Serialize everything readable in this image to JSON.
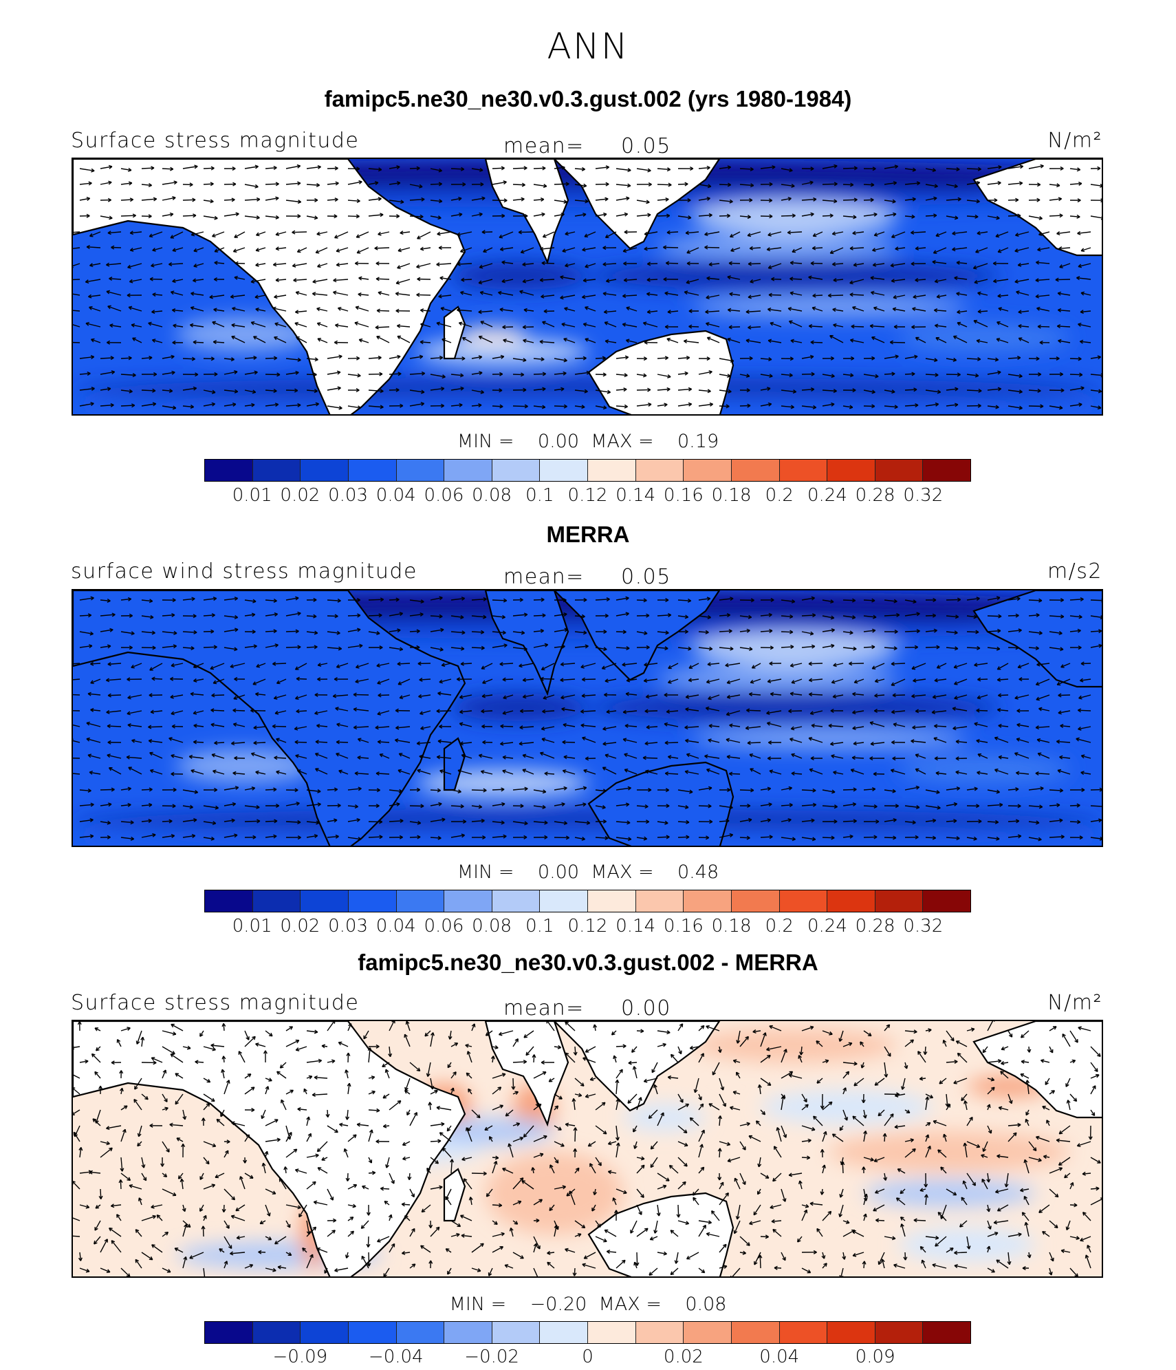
{
  "figure": {
    "season": "ANN",
    "colors": [
      "#08088c",
      "#0c2db0",
      "#0d44d6",
      "#1b5cf0",
      "#3b79f2",
      "#7fa6f5",
      "#b3cbf8",
      "#d9e8fb",
      "#fdeadc",
      "#fbc7ad",
      "#f7a37f",
      "#f27a4f",
      "#ed5126",
      "#dc3510",
      "#b4200b",
      "#870606"
    ]
  },
  "panels": [
    {
      "title": "famipc5.ne30_ne30.v0.3.gust.002 (yrs 1980-1984)",
      "left_label": "Surface stress magnitude",
      "mean_label": "mean=",
      "mean_value": "0.05",
      "units": "N/m²",
      "min_label": "MIN =",
      "min_value": "0.00",
      "max_label": "MAX =",
      "max_value": "0.19",
      "colorbar_ticks": [
        "0.01",
        "0.02",
        "0.03",
        "0.04",
        "0.06",
        "0.08",
        "0.1",
        "0.12",
        "0.14",
        "0.16",
        "0.18",
        "0.2",
        "0.24",
        "0.28",
        "0.32"
      ],
      "land_mask": true,
      "style": "blue"
    },
    {
      "title": "MERRA",
      "left_label": "surface wind stress magnitude",
      "mean_label": "mean=",
      "mean_value": "0.05",
      "units": "m/s2",
      "min_label": "MIN =",
      "min_value": "0.00",
      "max_label": "MAX =",
      "max_value": "0.48",
      "colorbar_ticks": [
        "0.01",
        "0.02",
        "0.03",
        "0.04",
        "0.06",
        "0.08",
        "0.1",
        "0.12",
        "0.14",
        "0.16",
        "0.18",
        "0.2",
        "0.24",
        "0.28",
        "0.32"
      ],
      "land_mask": false,
      "style": "blue"
    },
    {
      "title": "famipc5.ne30_ne30.v0.3.gust.002 - MERRA",
      "left_label": "Surface stress magnitude",
      "mean_label": "mean=",
      "mean_value": "0.00",
      "units": "N/m²",
      "min_label": "MIN =",
      "min_value": "−0.20",
      "max_label": "MAX =",
      "max_value": "0.08",
      "colorbar_ticks": [
        "−0.09",
        "−0.04",
        "−0.02",
        "0",
        "0.02",
        "0.04",
        "0.09"
      ],
      "land_mask": true,
      "style": "diff"
    }
  ]
}
